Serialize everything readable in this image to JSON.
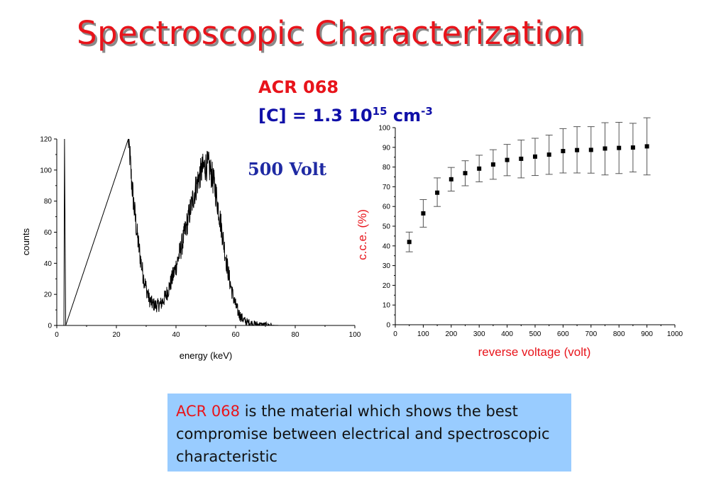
{
  "slide": {
    "title": "Spectroscopic Characterization",
    "sample_name": "ACR 068",
    "concentration_prefix": "[C] = 1.3 10",
    "concentration_exponent": "15",
    "concentration_unit": "cm",
    "concentration_unit_exponent": "-3",
    "voltage_label": "500 Volt",
    "note_highlight": "ACR 068",
    "note_text": " is the material which shows the best compromise between electrical and spectroscopic characteristic",
    "colors": {
      "title": "#e8141b",
      "concentration": "#1010a8",
      "voltage": "#1f2aa3",
      "note_bg": "#99ccff"
    }
  },
  "chart_data": [
    {
      "type": "line",
      "xlabel": "energy (keV)",
      "ylabel": "counts",
      "xlim": [
        0,
        100
      ],
      "ylim": [
        0,
        120
      ],
      "xticks": [
        0,
        20,
        40,
        60,
        80,
        100
      ],
      "yticks": [
        0,
        20,
        40,
        60,
        80,
        100,
        120
      ],
      "series": [
        {
          "x": [
            0,
            2.4,
            2.6,
            3,
            24,
            24.5,
            25,
            26,
            27,
            28,
            29,
            30,
            31,
            32,
            33,
            34,
            35,
            36,
            37,
            38,
            39,
            40,
            41,
            42,
            43,
            44,
            45,
            46,
            47,
            48,
            49,
            50,
            51,
            52,
            53,
            54,
            55,
            56,
            57,
            58,
            59,
            60,
            61,
            62,
            63,
            64,
            65,
            66,
            67,
            68,
            69,
            70,
            72,
            75,
            100
          ],
          "y": [
            0,
            0,
            120,
            0,
            120,
            110,
            95,
            75,
            58,
            44,
            32,
            24,
            17,
            14,
            13,
            13,
            14,
            17,
            21,
            26,
            32,
            38,
            45,
            52,
            60,
            68,
            76,
            84,
            91,
            97,
            101,
            103,
            102,
            97,
            89,
            78,
            66,
            53,
            40,
            29,
            20,
            13,
            8,
            5,
            3,
            2,
            1.5,
            1,
            0.8,
            0.5,
            0.3,
            0.2,
            0.1,
            0,
            0
          ]
        }
      ]
    },
    {
      "type": "scatter",
      "xlabel": "reverse voltage (volt)",
      "ylabel": "c.c.e. (%)",
      "xlim": [
        0,
        1000
      ],
      "ylim": [
        0,
        100
      ],
      "xticks": [
        0,
        100,
        200,
        300,
        400,
        500,
        600,
        700,
        800,
        900,
        1000
      ],
      "yticks": [
        0,
        10,
        20,
        30,
        40,
        50,
        60,
        70,
        80,
        90,
        100
      ],
      "series": [
        {
          "x": [
            50,
            100,
            150,
            200,
            250,
            300,
            350,
            400,
            450,
            500,
            550,
            600,
            650,
            700,
            750,
            800,
            850,
            900
          ],
          "y": [
            42,
            56.5,
            67,
            73.8,
            76.9,
            79.2,
            81.3,
            83.6,
            84.2,
            85.3,
            86.3,
            88.1,
            88.6,
            88.7,
            89.4,
            89.7,
            89.9,
            90.5
          ],
          "err_low": [
            37,
            49.5,
            60,
            67.8,
            70.5,
            72.5,
            73.8,
            75.6,
            74.5,
            75.7,
            76.3,
            77,
            77,
            76.9,
            76,
            76.7,
            77.5,
            76
          ],
          "err_high": [
            47,
            63.5,
            74.5,
            79.8,
            83.2,
            86,
            88.8,
            91.5,
            93.7,
            94.6,
            96.2,
            99.5,
            100.5,
            100.5,
            102.5,
            102.7,
            102.2,
            105
          ]
        }
      ]
    }
  ]
}
